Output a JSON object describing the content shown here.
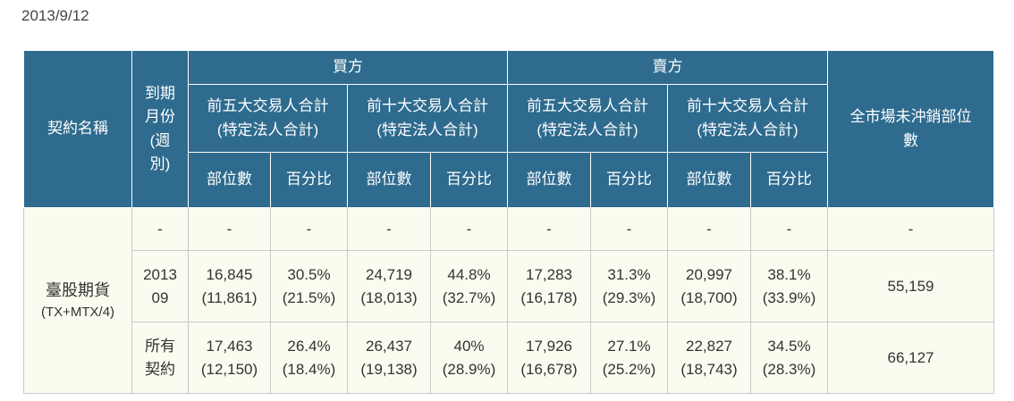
{
  "date": "2013/9/12",
  "headers": {
    "contract_name": "契約名稱",
    "expiry_lines": [
      "到期",
      "月份",
      "(週",
      "別)"
    ],
    "buy": "買方",
    "sell": "賣方",
    "total_oi_lines": [
      "全市場未沖銷部位",
      "數"
    ],
    "top5_lines": [
      "前五大交易人合計",
      "(特定法人合計)"
    ],
    "top10_lines": [
      "前十大交易人合計",
      "(特定法人合計)"
    ],
    "position": "部位數",
    "percent": "百分比"
  },
  "contract": {
    "name": "臺股期貨",
    "code": "(TX+MTX/4)"
  },
  "rows": [
    {
      "expiry": [
        "-"
      ],
      "cells": [
        [
          "-"
        ],
        [
          "-"
        ],
        [
          "-"
        ],
        [
          "-"
        ],
        [
          "-"
        ],
        [
          "-"
        ],
        [
          "-"
        ],
        [
          "-"
        ]
      ],
      "total": "-"
    },
    {
      "expiry": [
        "2013",
        "09"
      ],
      "cells": [
        [
          "16,845",
          "(11,861)"
        ],
        [
          "30.5%",
          "(21.5%)"
        ],
        [
          "24,719",
          "(18,013)"
        ],
        [
          "44.8%",
          "(32.7%)"
        ],
        [
          "17,283",
          "(16,178)"
        ],
        [
          "31.3%",
          "(29.3%)"
        ],
        [
          "20,997",
          "(18,700)"
        ],
        [
          "38.1%",
          "(33.9%)"
        ]
      ],
      "total": "55,159"
    },
    {
      "expiry": [
        "所有",
        "契約"
      ],
      "cells": [
        [
          "17,463",
          "(12,150)"
        ],
        [
          "26.4%",
          "(18.4%)"
        ],
        [
          "26,437",
          "(19,138)"
        ],
        [
          "40%",
          "(28.9%)"
        ],
        [
          "17,926",
          "(16,678)"
        ],
        [
          "27.1%",
          "(25.2%)"
        ],
        [
          "22,827",
          "(18,743)"
        ],
        [
          "34.5%",
          "(28.3%)"
        ]
      ],
      "total": "66,127"
    }
  ]
}
